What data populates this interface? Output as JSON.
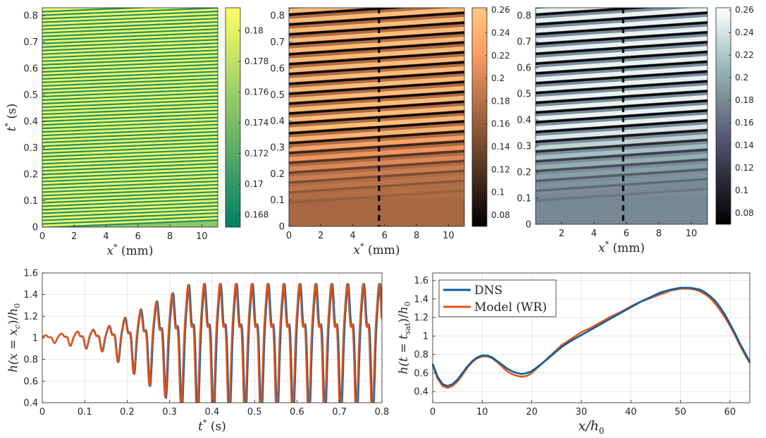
{
  "figure": "Thin-film wave evolution: heatmaps and line comparisons",
  "colors": {
    "dns": "#0b5fa0",
    "model": "#e0551a",
    "grid": "#e6e6e6",
    "axis": "#262626"
  },
  "chart_data": [
    {
      "id": "heatmap-1",
      "type": "heatmap",
      "colormap": "summer",
      "xlabel": "x* (mm)",
      "ylabel": "t* (s)",
      "xlim": [
        0,
        11
      ],
      "ylim": [
        0,
        0.83
      ],
      "xticks": [
        "0",
        "2",
        "4",
        "6",
        "8",
        "10"
      ],
      "xtick_values": [
        0,
        2,
        4,
        6,
        8,
        10
      ],
      "yticks": [
        "0",
        "0.1",
        "0.2",
        "0.3",
        "0.4",
        "0.5",
        "0.6",
        "0.7",
        "0.8"
      ],
      "ytick_values": [
        0,
        0.1,
        0.2,
        0.3,
        0.4,
        0.5,
        0.6,
        0.7,
        0.8
      ],
      "clim": [
        0.1672,
        0.1815
      ],
      "colorbar_ticks": [
        "0.168",
        "0.17",
        "0.172",
        "0.174",
        "0.176",
        "0.178",
        "0.18"
      ],
      "colorbar_values": [
        0.168,
        0.17,
        0.172,
        0.174,
        0.176,
        0.178,
        0.18
      ],
      "description_stripes": 60,
      "dashed_line_x": null
    },
    {
      "id": "heatmap-2",
      "type": "heatmap",
      "colormap": "copper",
      "xlabel": "x* (mm)",
      "ylabel": "",
      "xlim": [
        0,
        11
      ],
      "ylim": [
        0,
        0.83
      ],
      "xticks": [
        "0",
        "2",
        "4",
        "6",
        "8",
        "10"
      ],
      "xtick_values": [
        0,
        2,
        4,
        6,
        8,
        10
      ],
      "yticks": [
        "0",
        "0.1",
        "0.2",
        "0.3",
        "0.4",
        "0.5",
        "0.6",
        "0.7",
        "0.8"
      ],
      "ytick_values": [
        0,
        0.1,
        0.2,
        0.3,
        0.4,
        0.5,
        0.6,
        0.7,
        0.8
      ],
      "clim": [
        0.07,
        0.262
      ],
      "colorbar_ticks": [
        "0.08",
        "0.1",
        "0.12",
        "0.14",
        "0.16",
        "0.18",
        "0.2",
        "0.22",
        "0.24",
        "0.26"
      ],
      "colorbar_values": [
        0.08,
        0.1,
        0.12,
        0.14,
        0.16,
        0.18,
        0.2,
        0.22,
        0.24,
        0.26
      ],
      "dashed_line_x": 5.65
    },
    {
      "id": "heatmap-3",
      "type": "heatmap",
      "colormap": "bone",
      "xlabel": "x* (mm)",
      "ylabel": "",
      "xlim": [
        0.4,
        11
      ],
      "ylim": [
        0,
        0.83
      ],
      "xticks": [
        "2",
        "4",
        "6",
        "8",
        "10"
      ],
      "xtick_values": [
        2,
        4,
        6,
        8,
        10
      ],
      "yticks": [
        "0",
        "0.1",
        "0.2",
        "0.3",
        "0.4",
        "0.5",
        "0.6",
        "0.7",
        "0.8"
      ],
      "ytick_values": [
        0,
        0.1,
        0.2,
        0.3,
        0.4,
        0.5,
        0.6,
        0.7,
        0.8
      ],
      "clim": [
        0.07,
        0.262
      ],
      "colorbar_ticks": [
        "0.08",
        "0.1",
        "0.12",
        "0.14",
        "0.16",
        "0.18",
        "0.2",
        "0.22",
        "0.24",
        "0.26"
      ],
      "colorbar_values": [
        0.08,
        0.1,
        0.12,
        0.14,
        0.16,
        0.18,
        0.2,
        0.22,
        0.24,
        0.26
      ],
      "dashed_line_x": 5.8
    },
    {
      "id": "line-time",
      "type": "line",
      "xlabel": "t* (s)",
      "ylabel": "h(x = x_c)/h_0",
      "xlim": [
        0,
        0.8
      ],
      "ylim": [
        0.4,
        1.6
      ],
      "xticks": [
        "0",
        "0.1",
        "0.2",
        "0.3",
        "0.4",
        "0.5",
        "0.6",
        "0.7",
        "0.8"
      ],
      "xtick_values": [
        0,
        0.1,
        0.2,
        0.3,
        0.4,
        0.5,
        0.6,
        0.7,
        0.8
      ],
      "yticks": [
        "0.4",
        "0.6",
        "0.8",
        "1",
        "1.2",
        "1.4",
        "1.6"
      ],
      "ytick_values": [
        0.4,
        0.6,
        0.8,
        1.0,
        1.2,
        1.4,
        1.6
      ],
      "grid": true,
      "series": [
        {
          "name": "DNS",
          "color": "#0b5fa0"
        },
        {
          "name": "Model (WR)",
          "color": "#e0551a"
        }
      ]
    },
    {
      "id": "line-space",
      "type": "line",
      "xlabel": "x/h_0",
      "ylabel": "h(t = t_sat)/h_0",
      "xlim": [
        0,
        64
      ],
      "ylim": [
        0.28,
        1.68
      ],
      "xticks": [
        "0",
        "10",
        "20",
        "30",
        "40",
        "50",
        "60"
      ],
      "xtick_values": [
        0,
        10,
        20,
        30,
        40,
        50,
        60
      ],
      "yticks": [
        "0.4",
        "0.6",
        "0.8",
        "1",
        "1.2",
        "1.4",
        "1.6"
      ],
      "ytick_values": [
        0.4,
        0.6,
        0.8,
        1.0,
        1.2,
        1.4,
        1.6
      ],
      "grid": true,
      "legend_position": "top-left",
      "series": [
        {
          "name": "DNS",
          "color": "#0b5fa0",
          "x": [
            0,
            1,
            2,
            3,
            4,
            5,
            6,
            7,
            8,
            9,
            10,
            11,
            12,
            13,
            14,
            15,
            16,
            17,
            18,
            19,
            20,
            22,
            24,
            26,
            28,
            30,
            32,
            34,
            36,
            38,
            40,
            42,
            44,
            46,
            48,
            50,
            51,
            52,
            53,
            54,
            55,
            56,
            57,
            58,
            59,
            60,
            61,
            62,
            63,
            64
          ],
          "y": [
            0.7,
            0.56,
            0.48,
            0.46,
            0.48,
            0.53,
            0.6,
            0.67,
            0.73,
            0.77,
            0.79,
            0.79,
            0.77,
            0.73,
            0.69,
            0.65,
            0.62,
            0.6,
            0.59,
            0.6,
            0.62,
            0.7,
            0.79,
            0.88,
            0.95,
            1.01,
            1.07,
            1.13,
            1.19,
            1.25,
            1.31,
            1.37,
            1.42,
            1.47,
            1.5,
            1.52,
            1.52,
            1.52,
            1.51,
            1.5,
            1.47,
            1.43,
            1.38,
            1.31,
            1.23,
            1.13,
            1.03,
            0.92,
            0.82,
            0.72
          ]
        },
        {
          "name": "Model (WR)",
          "color": "#e0551a",
          "x": [
            0,
            1,
            2,
            3,
            4,
            5,
            6,
            7,
            8,
            9,
            10,
            11,
            12,
            13,
            14,
            15,
            16,
            17,
            18,
            19,
            20,
            22,
            24,
            26,
            28,
            30,
            32,
            34,
            36,
            38,
            40,
            42,
            44,
            46,
            48,
            50,
            51,
            52,
            53,
            54,
            55,
            56,
            57,
            58,
            59,
            60,
            61,
            62,
            63,
            64
          ],
          "y": [
            0.69,
            0.54,
            0.46,
            0.44,
            0.46,
            0.51,
            0.58,
            0.66,
            0.72,
            0.76,
            0.78,
            0.78,
            0.76,
            0.72,
            0.67,
            0.62,
            0.59,
            0.57,
            0.56,
            0.57,
            0.6,
            0.7,
            0.8,
            0.9,
            0.97,
            1.04,
            1.09,
            1.15,
            1.21,
            1.26,
            1.32,
            1.37,
            1.41,
            1.45,
            1.49,
            1.51,
            1.51,
            1.51,
            1.5,
            1.48,
            1.45,
            1.41,
            1.35,
            1.28,
            1.2,
            1.11,
            1.01,
            0.9,
            0.8,
            0.71
          ]
        }
      ]
    }
  ]
}
